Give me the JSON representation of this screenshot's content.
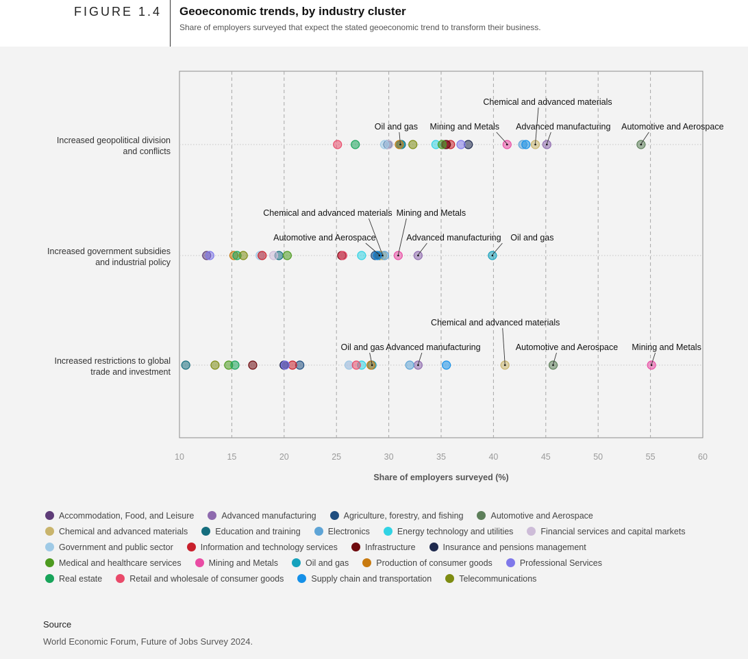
{
  "figure": {
    "label": "FIGURE 1.4",
    "title": "Geoeconomic trends, by industry cluster",
    "subtitle": "Share of employers surveyed that expect the stated geoeconomic trend to transform their business."
  },
  "source": {
    "title": "Source",
    "text": "World Economic Forum, Future of Jobs Survey 2024."
  },
  "clusters": [
    {
      "name": "Accommodation, Food, and Leisure",
      "color": "#5e3c78"
    },
    {
      "name": "Advanced manufacturing",
      "color": "#8e6aae"
    },
    {
      "name": "Agriculture, forestry, and fishing",
      "color": "#1f4e80"
    },
    {
      "name": "Automotive and Aerospace",
      "color": "#5d7f5a"
    },
    {
      "name": "Chemical and advanced materials",
      "color": "#c9b46c"
    },
    {
      "name": "Education and training",
      "color": "#156d7d"
    },
    {
      "name": "Electronics",
      "color": "#5ea4d6"
    },
    {
      "name": "Energy technology and utilities",
      "color": "#31d3e4"
    },
    {
      "name": "Financial services and capital markets",
      "color": "#cdbcd8"
    },
    {
      "name": "Government and public sector",
      "color": "#9fcae6"
    },
    {
      "name": "Information and technology services",
      "color": "#c8202c"
    },
    {
      "name": "Infrastructure",
      "color": "#6e0a0e"
    },
    {
      "name": "Insurance and pensions management",
      "color": "#1f2a4e"
    },
    {
      "name": "Medical and healthcare services",
      "color": "#4d9a1f"
    },
    {
      "name": "Mining and Metals",
      "color": "#e94ca4"
    },
    {
      "name": "Oil and gas",
      "color": "#16a2bd"
    },
    {
      "name": "Production of consumer goods",
      "color": "#c87a0f"
    },
    {
      "name": "Professional Services",
      "color": "#7f78ea"
    },
    {
      "name": "Real estate",
      "color": "#18a45a"
    },
    {
      "name": "Retail and wholesale of consumer goods",
      "color": "#e94a6a"
    },
    {
      "name": "Supply chain and transportation",
      "color": "#1590e8"
    },
    {
      "name": "Telecommunications",
      "color": "#7e8c12"
    }
  ],
  "chart_data": {
    "type": "scatter",
    "xlabel": "Share of employers surveyed (%)",
    "xlim": [
      10,
      60
    ],
    "xticks": [
      10,
      15,
      20,
      25,
      30,
      35,
      40,
      45,
      50,
      55,
      60
    ],
    "grid": "vertical dashed",
    "categories": [
      "Increased geopolitical division and conflicts",
      "Increased government subsidies and industrial policy",
      "Increased restrictions to global trade and investment"
    ],
    "category_lines": [
      [
        "Increased geopolitical division",
        "and conflicts"
      ],
      [
        "Increased government subsidies",
        "and industrial policy"
      ],
      [
        "Increased restrictions to global",
        "trade and investment"
      ]
    ],
    "series": [
      {
        "name": "Accommodation, Food, and Leisure",
        "values": [
          35.4,
          12.6,
          20.0
        ]
      },
      {
        "name": "Advanced manufacturing",
        "values": [
          45.1,
          32.8,
          32.8
        ]
      },
      {
        "name": "Agriculture, forestry, and fishing",
        "values": [
          29.9,
          28.7,
          21.5
        ]
      },
      {
        "name": "Automotive and Aerospace",
        "values": [
          54.1,
          29.1,
          45.7
        ]
      },
      {
        "name": "Chemical and advanced materials",
        "values": [
          44.0,
          29.4,
          41.1
        ]
      },
      {
        "name": "Education and training",
        "values": [
          31.2,
          19.5,
          10.6
        ]
      },
      {
        "name": "Electronics",
        "values": [
          42.8,
          29.6,
          32.0
        ]
      },
      {
        "name": "Energy technology and utilities",
        "values": [
          34.5,
          27.4,
          27.4
        ]
      },
      {
        "name": "Financial services and capital markets",
        "values": [
          30.0,
          19.0,
          26.2
        ]
      },
      {
        "name": "Government and public sector",
        "values": [
          29.6,
          17.7,
          26.2
        ]
      },
      {
        "name": "Information and technology services",
        "values": [
          35.9,
          17.9,
          20.8
        ]
      },
      {
        "name": "Infrastructure",
        "values": [
          35.5,
          25.5,
          17.0
        ]
      },
      {
        "name": "Insurance and pensions management",
        "values": [
          37.6,
          28.9,
          20.0
        ]
      },
      {
        "name": "Medical and healthcare services",
        "values": [
          35.1,
          20.3,
          14.7
        ]
      },
      {
        "name": "Mining and Metals",
        "values": [
          41.3,
          30.9,
          55.1
        ]
      },
      {
        "name": "Oil and gas",
        "values": [
          31.1,
          39.9,
          28.4
        ]
      },
      {
        "name": "Production of consumer goods",
        "values": [
          31.0,
          15.2,
          28.3
        ]
      },
      {
        "name": "Professional Services",
        "values": [
          36.9,
          12.9,
          20.1
        ]
      },
      {
        "name": "Real estate",
        "values": [
          26.8,
          15.5,
          15.3
        ]
      },
      {
        "name": "Retail and wholesale of consumer goods",
        "values": [
          25.1,
          25.6,
          26.9
        ]
      },
      {
        "name": "Supply chain and transportation",
        "values": [
          43.1,
          28.9,
          35.5
        ]
      },
      {
        "name": "Telecommunications",
        "values": [
          32.3,
          16.1,
          13.4
        ]
      }
    ],
    "annotations": [
      {
        "row": 0,
        "x": 31.1,
        "label": "Oil and gas",
        "level": 1
      },
      {
        "row": 0,
        "x": 41.3,
        "label": "Mining and Metals",
        "level": 1
      },
      {
        "row": 0,
        "x": 45.1,
        "label": "Advanced manufacturing",
        "level": 1
      },
      {
        "row": 0,
        "x": 44.0,
        "label": "Chemical and advanced materials",
        "level": 2
      },
      {
        "row": 0,
        "x": 54.1,
        "label": "Automotive and Aerospace",
        "level": 1
      },
      {
        "row": 1,
        "x": 29.4,
        "label": "Chemical and advanced materials",
        "level": 2
      },
      {
        "row": 1,
        "x": 30.9,
        "label": "Mining and Metals",
        "level": 2
      },
      {
        "row": 1,
        "x": 29.1,
        "label": "Automotive and Aerospace",
        "level": 1
      },
      {
        "row": 1,
        "x": 32.8,
        "label": "Advanced manufacturing",
        "level": 1
      },
      {
        "row": 1,
        "x": 39.9,
        "label": "Oil and gas",
        "level": 1
      },
      {
        "row": 2,
        "x": 28.4,
        "label": "Oil and gas",
        "level": 1
      },
      {
        "row": 2,
        "x": 32.8,
        "label": "Advanced manufacturing",
        "level": 1
      },
      {
        "row": 2,
        "x": 41.1,
        "label": "Chemical and advanced materials",
        "level": 2
      },
      {
        "row": 2,
        "x": 45.7,
        "label": "Automotive and Aerospace",
        "level": 1
      },
      {
        "row": 2,
        "x": 55.1,
        "label": "Mining and Metals",
        "level": 1
      }
    ]
  }
}
